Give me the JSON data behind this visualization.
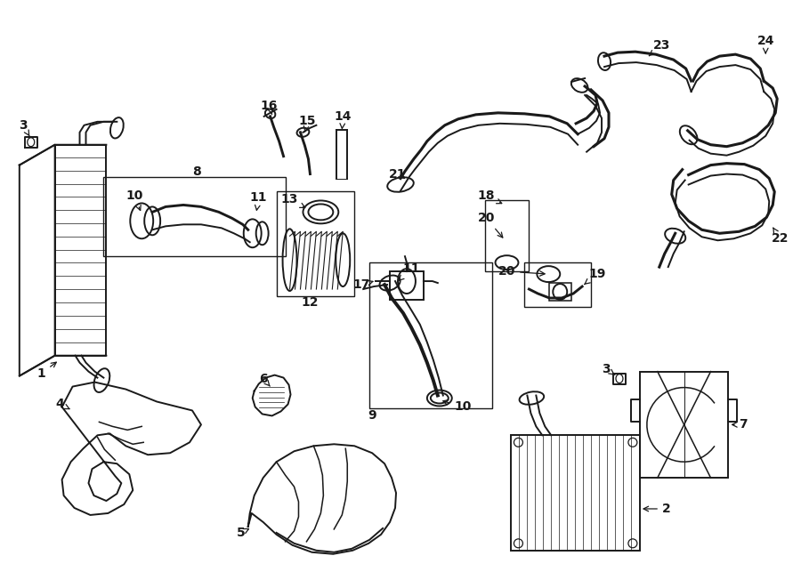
{
  "bg_color": "#ffffff",
  "line_color": "#1a1a1a",
  "figsize": [
    9.0,
    6.61
  ],
  "dpi": 100,
  "lw": 1.4,
  "lw_thick": 2.2,
  "lw_thin": 0.7,
  "font_size": 10,
  "font_size_lg": 12
}
